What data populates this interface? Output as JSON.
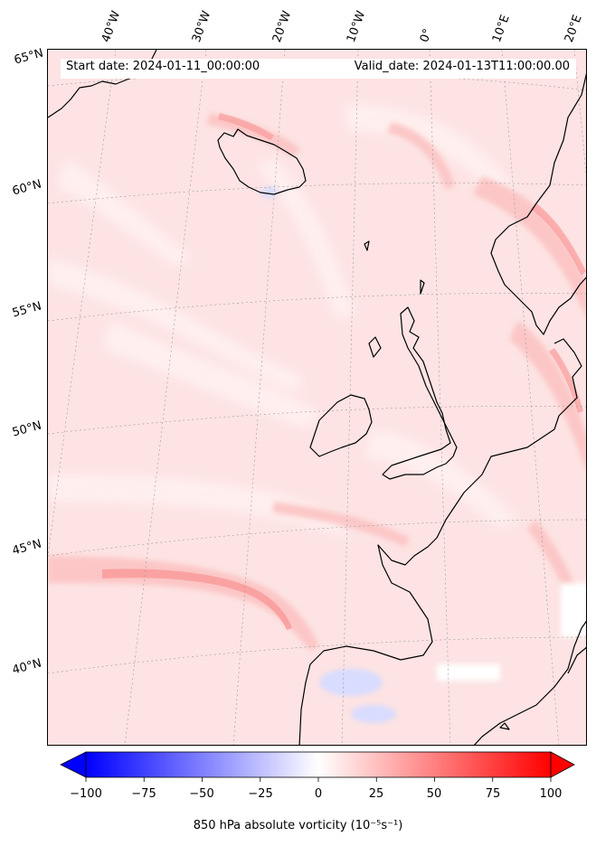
{
  "map": {
    "start_date": "Start date: 2024-01-11_00:00:00",
    "valid_date": "Valid_date: 2024-01-13T11:00:00.00",
    "longitude_labels": [
      "40°W",
      "30°W",
      "20°W",
      "10°W",
      "0°",
      "10°E",
      "20°E"
    ],
    "latitude_labels": [
      "65°N",
      "60°N",
      "55°N",
      "50°N",
      "45°N",
      "40°N"
    ],
    "field_colors": {
      "background": "#fde3e3",
      "light": "#fff1f1",
      "medium": "#fcc6c6",
      "strong": "#f99b9b",
      "negative": "#d8dcff",
      "coastline": "#000000"
    }
  },
  "colorbar": {
    "label": "850 hPa absolute vorticity (10⁻⁵s⁻¹)",
    "ticks": [
      "−100",
      "−75",
      "−50",
      "−25",
      "0",
      "25",
      "50",
      "75",
      "100"
    ],
    "range": [
      -100,
      100
    ],
    "colormap": "bwr",
    "colors": {
      "min": "#0000ff",
      "mid": "#ffffff",
      "max": "#ff0000"
    }
  }
}
